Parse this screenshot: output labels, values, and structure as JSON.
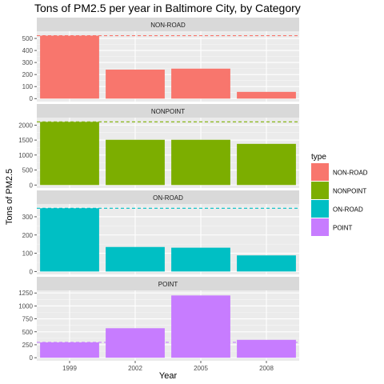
{
  "chart_data": {
    "type": "bar",
    "title": "Tons of PM2.5 per year in Baltimore City, by Category",
    "xlabel": "Year",
    "ylabel": "Tons of PM2.5",
    "categories": [
      "1999",
      "2002",
      "2005",
      "2008"
    ],
    "grid": true,
    "legend_placement": "right",
    "legend": {
      "title": "type",
      "entries": [
        "NON-ROAD",
        "NONPOINT",
        "ON-ROAD",
        "POINT"
      ]
    },
    "panels": [
      {
        "name": "NON-ROAD",
        "color": "#F8766D",
        "values": [
          522.94,
          240.85,
          248.93,
          55.82
        ],
        "reference_line": 522.94,
        "ylim": [
          -25,
          560
        ],
        "yticks": [
          0,
          100,
          200,
          300,
          400,
          500
        ]
      },
      {
        "name": "NONPOINT",
        "color": "#7CAE00",
        "values": [
          2107.62,
          1509.5,
          1509.5,
          1373.21
        ],
        "reference_line": 2107.62,
        "ylim": [
          -100,
          2250
        ],
        "yticks": [
          0,
          500,
          1000,
          1500,
          2000
        ]
      },
      {
        "name": "ON-ROAD",
        "color": "#00BFC4",
        "values": [
          346.82,
          134.31,
          130.43,
          88.28
        ],
        "reference_line": 346.82,
        "ylim": [
          -16,
          370
        ],
        "yticks": [
          0,
          100,
          200,
          300
        ]
      },
      {
        "name": "POINT",
        "color": "#C77CFF",
        "values": [
          296.8,
          569.26,
          1202.49,
          344.98
        ],
        "reference_line": 296.8,
        "ylim": [
          -60,
          1300
        ],
        "yticks": [
          0,
          250,
          500,
          750,
          1000,
          1250
        ]
      }
    ]
  }
}
